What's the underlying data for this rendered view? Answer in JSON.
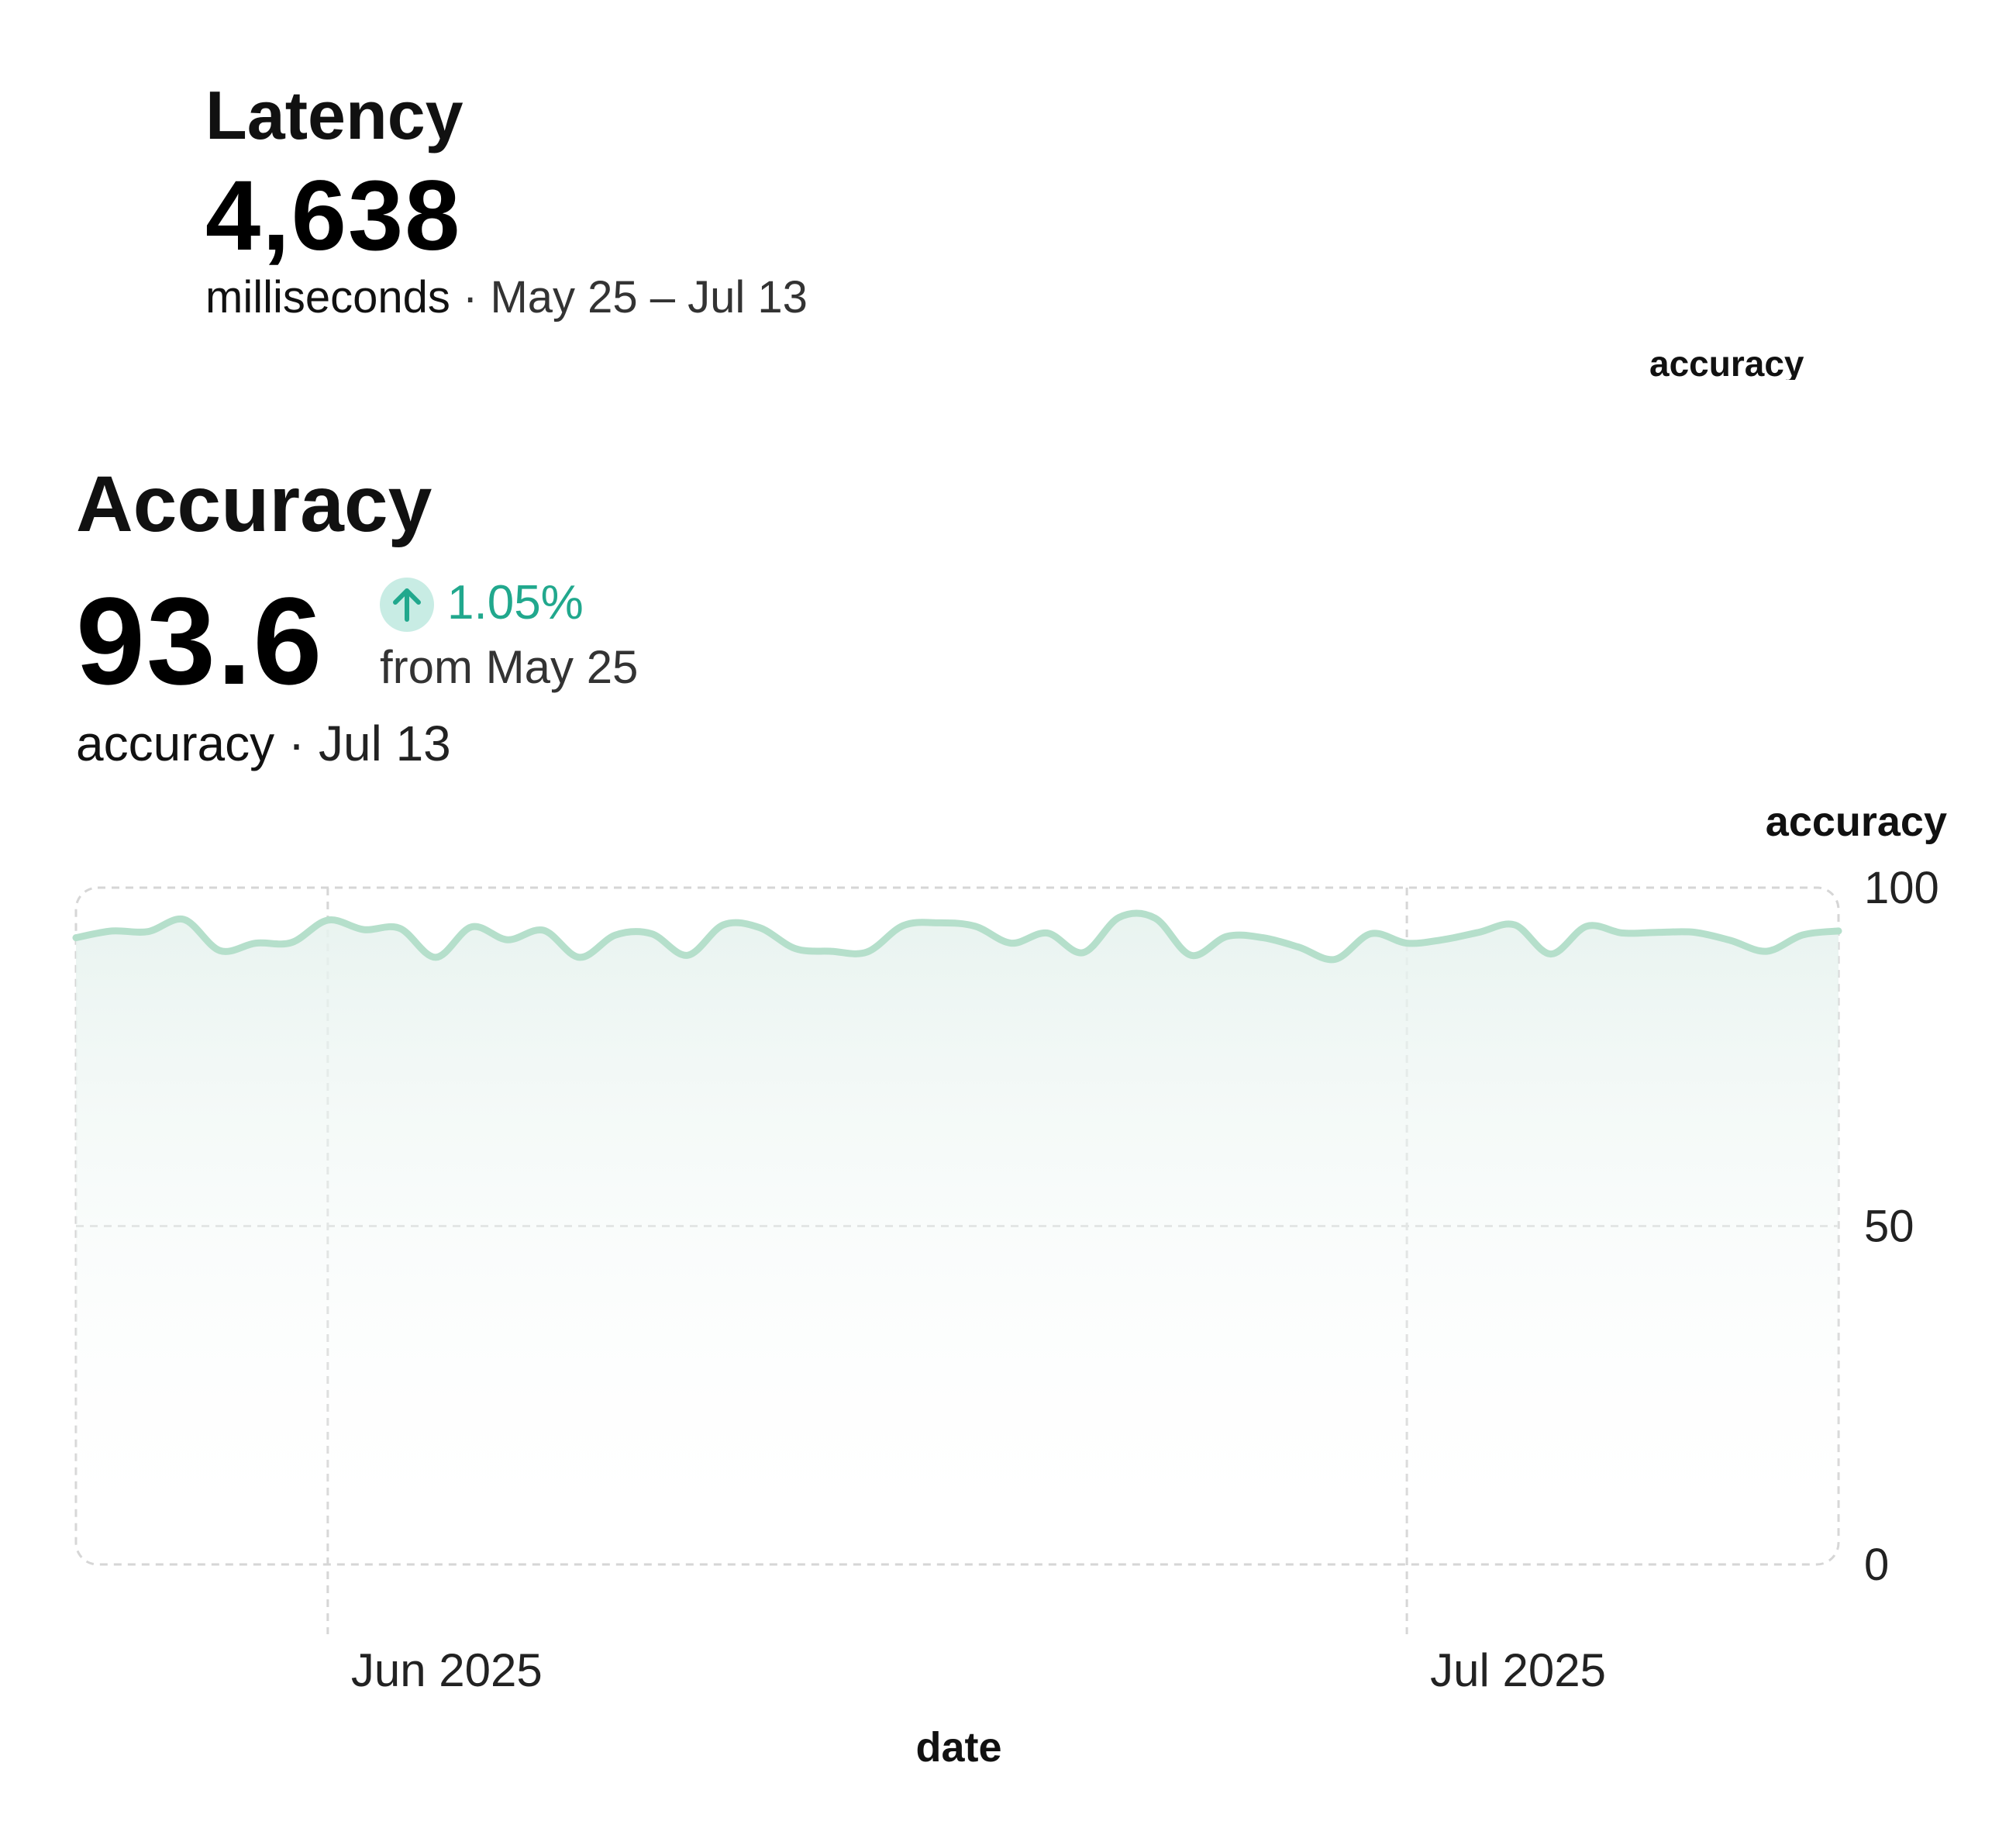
{
  "latency_card": {
    "title": "Latency",
    "value": "4,638",
    "unit": "milliseconds",
    "separator": "·",
    "period": "May 25 – Jul 13"
  },
  "floating_label": "accuracy",
  "accuracy_card": {
    "title": "Accuracy",
    "value": "93.6",
    "delta": {
      "direction": "up",
      "value": "1.05%",
      "from_text": "from May 25",
      "icon": "arrow-up-icon",
      "color": "#21a88d"
    },
    "unit": "accuracy",
    "separator": "·",
    "date": "Jul 13"
  },
  "chart_data": {
    "type": "area",
    "xlabel": "date",
    "ylabel": "accuracy",
    "ylim": [
      0,
      100
    ],
    "yticks": [
      0,
      50,
      100
    ],
    "xlim": [
      "2025-05-25",
      "2025-07-13"
    ],
    "xticks": [
      {
        "date": "2025-06-01",
        "label": "Jun 2025"
      },
      {
        "date": "2025-07-01",
        "label": "Jul 2025"
      }
    ],
    "grid": true,
    "line_color": "#b5dfcb",
    "series": [
      {
        "x": [
          "2025-05-25",
          "2025-05-26",
          "2025-05-27",
          "2025-05-28",
          "2025-05-29",
          "2025-05-30",
          "2025-05-31",
          "2025-06-01",
          "2025-06-02",
          "2025-06-03",
          "2025-06-04",
          "2025-06-05",
          "2025-06-06",
          "2025-06-07",
          "2025-06-08",
          "2025-06-09",
          "2025-06-10",
          "2025-06-11",
          "2025-06-12",
          "2025-06-13",
          "2025-06-14",
          "2025-06-15",
          "2025-06-16",
          "2025-06-17",
          "2025-06-18",
          "2025-06-19",
          "2025-06-20",
          "2025-06-21",
          "2025-06-22",
          "2025-06-23",
          "2025-06-24",
          "2025-06-25",
          "2025-06-26",
          "2025-06-27",
          "2025-06-28",
          "2025-06-29",
          "2025-06-30",
          "2025-07-01",
          "2025-07-02",
          "2025-07-03",
          "2025-07-04",
          "2025-07-05",
          "2025-07-06",
          "2025-07-07",
          "2025-07-08",
          "2025-07-09",
          "2025-07-10",
          "2025-07-11",
          "2025-07-12",
          "2025-07-13"
        ],
        "values": [
          92.6,
          93.6,
          93.5,
          95.3,
          90.7,
          91.8,
          91.9,
          95.2,
          93.8,
          94.0,
          89.7,
          94.2,
          92.3,
          93.7,
          89.7,
          93.0,
          93.2,
          90.0,
          94.5,
          94.1,
          91.0,
          90.6,
          90.5,
          94.4,
          94.8,
          94.3,
          91.8,
          93.3,
          90.4,
          95.6,
          95.5,
          90.0,
          92.8,
          92.6,
          91.2,
          89.4,
          93.2,
          91.8,
          92.3,
          93.4,
          94.5,
          90.2,
          94.3,
          93.3,
          93.4,
          93.4,
          92.2,
          90.6,
          93.0,
          93.6
        ]
      }
    ]
  }
}
